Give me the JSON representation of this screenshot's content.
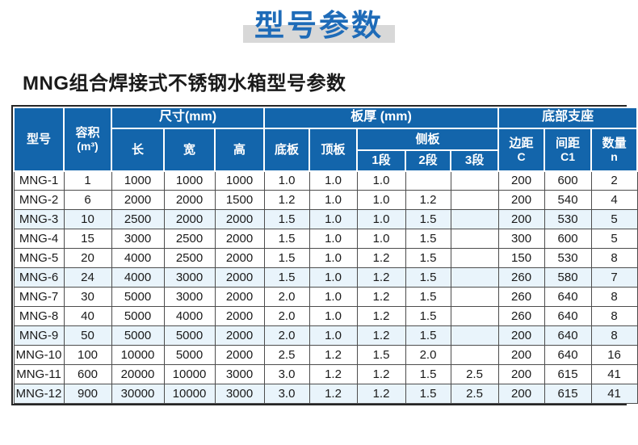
{
  "page": {
    "title": "型号参数"
  },
  "section": {
    "heading": "MNG组合焊接式不锈钢水箱型号参数"
  },
  "colors": {
    "header_bg": "#1365ab",
    "title_color": "#1e6bb8",
    "title_band": "#d8d8d8",
    "row_alt": "#e9f4fb",
    "body_border": "#4d4d4d"
  },
  "table": {
    "header": {
      "model": "型号",
      "capacity": "容积",
      "capacity_unit": "(m³)",
      "size_group": "尺寸(mm)",
      "length": "长",
      "width": "宽",
      "height": "高",
      "thickness_group": "板厚 (mm)",
      "bottom_plate": "底板",
      "top_plate": "顶板",
      "side_plate": "侧板",
      "seg1": "1段",
      "seg2": "2段",
      "seg3": "3段",
      "support_group": "底部支座",
      "edge": "边距",
      "edge_sub": "C",
      "spacing": "间距",
      "spacing_sub": "C1",
      "qty": "数量",
      "qty_sub": "n"
    },
    "column_keys": [
      "model",
      "capacity",
      "length",
      "width",
      "height",
      "bottom-plate",
      "top-plate",
      "side-seg1",
      "side-seg2",
      "side-seg3",
      "edge-c",
      "spacing-c1",
      "qty-n"
    ],
    "rows": [
      [
        "MNG-1",
        "1",
        "1000",
        "1000",
        "1000",
        "1.0",
        "1.0",
        "1.0",
        "",
        "",
        "200",
        "600",
        "2"
      ],
      [
        "MNG-2",
        "6",
        "2000",
        "2000",
        "1500",
        "1.2",
        "1.0",
        "1.0",
        "1.2",
        "",
        "200",
        "540",
        "4"
      ],
      [
        "MNG-3",
        "10",
        "2500",
        "2000",
        "2000",
        "1.5",
        "1.0",
        "1.0",
        "1.5",
        "",
        "200",
        "530",
        "5"
      ],
      [
        "MNG-4",
        "15",
        "3000",
        "2500",
        "2000",
        "1.5",
        "1.0",
        "1.0",
        "1.5",
        "",
        "300",
        "600",
        "5"
      ],
      [
        "MNG-5",
        "20",
        "4000",
        "2500",
        "2000",
        "1.5",
        "1.0",
        "1.2",
        "1.5",
        "",
        "150",
        "530",
        "8"
      ],
      [
        "MNG-6",
        "24",
        "4000",
        "3000",
        "2000",
        "1.5",
        "1.0",
        "1.2",
        "1.5",
        "",
        "260",
        "580",
        "7"
      ],
      [
        "MNG-7",
        "30",
        "5000",
        "3000",
        "2000",
        "2.0",
        "1.0",
        "1.2",
        "1.5",
        "",
        "260",
        "640",
        "8"
      ],
      [
        "MNG-8",
        "40",
        "5000",
        "4000",
        "2000",
        "2.0",
        "1.0",
        "1.2",
        "1.5",
        "",
        "260",
        "640",
        "8"
      ],
      [
        "MNG-9",
        "50",
        "5000",
        "5000",
        "2000",
        "2.0",
        "1.0",
        "1.2",
        "1.5",
        "",
        "200",
        "640",
        "8"
      ],
      [
        "MNG-10",
        "100",
        "10000",
        "5000",
        "2000",
        "2.5",
        "1.2",
        "1.5",
        "2.0",
        "",
        "200",
        "640",
        "16"
      ],
      [
        "MNG-11",
        "600",
        "20000",
        "10000",
        "3000",
        "3.0",
        "1.2",
        "1.2",
        "1.5",
        "2.5",
        "200",
        "615",
        "41"
      ],
      [
        "MNG-12",
        "900",
        "30000",
        "10000",
        "3000",
        "3.0",
        "1.2",
        "1.2",
        "1.5",
        "2.5",
        "200",
        "615",
        "41"
      ]
    ]
  }
}
